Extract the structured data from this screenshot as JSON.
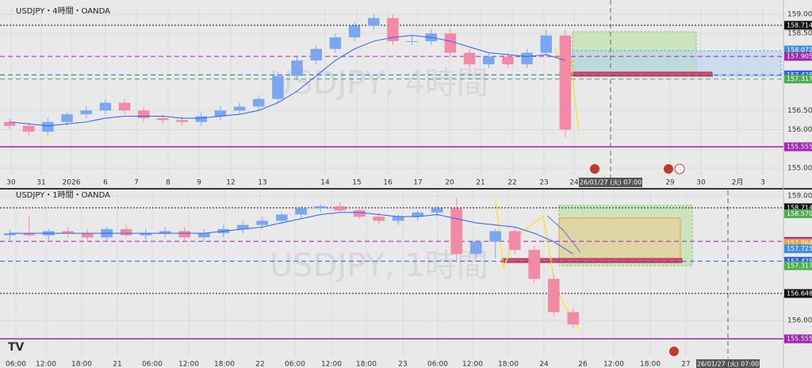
{
  "panels": [
    {
      "type": "candlestick",
      "title": "USDJPY・4時間・OANDA",
      "watermark": "USDJPY, 4時間",
      "ylim": [
        154.794,
        159.206
      ],
      "yticks": [
        {
          "value": 159,
          "label": "159.000"
        },
        {
          "value": 158.5,
          "label": "158.500"
        },
        {
          "value": 156.5,
          "label": "156.500"
        },
        {
          "value": 156,
          "label": "156.000"
        },
        {
          "value": 155.5,
          "label": "155.500"
        },
        {
          "value": 155,
          "label": "155.000"
        }
      ],
      "levels": [
        {
          "value": 158.714,
          "color": "#111111",
          "style": "dotted"
        },
        {
          "value": 158.072,
          "color": "#3d8fe0",
          "style": "none"
        },
        {
          "value": 157.905,
          "color": "#9c27b0",
          "style": "dashed"
        },
        {
          "value": 157.425,
          "color": "#2962ff",
          "style": "dashed"
        },
        {
          "value": 157.317,
          "color": "#4caf50",
          "style": "dashed"
        },
        {
          "value": 155.555,
          "color": "#9c27b0",
          "style": "solid"
        }
      ],
      "x_labels": [
        "30",
        "31",
        "2026",
        "6",
        "7",
        "8",
        "9",
        "12",
        "13",
        "14",
        "15",
        "16",
        "17",
        "20",
        "21",
        "22",
        "23",
        "24",
        "29",
        "30",
        "2月",
        "3"
      ],
      "crosshair_label": "26/01/27 (火)  07:00",
      "open": [
        156.2,
        156.1,
        155.95,
        156.2,
        156.4,
        156.5,
        156.7,
        156.5,
        156.3,
        156.25,
        156.2,
        156.35,
        156.5,
        156.6,
        156.8,
        157.4,
        157.8,
        158.1,
        158.4,
        158.7,
        158.9,
        158.3,
        158.3,
        158.5,
        158.0,
        157.7,
        157.9,
        157.7,
        158.0,
        158.45
      ],
      "high": [
        156.3,
        156.2,
        156.3,
        156.45,
        156.6,
        156.8,
        156.8,
        156.6,
        156.4,
        156.35,
        156.45,
        156.6,
        156.7,
        156.9,
        157.5,
        157.9,
        158.2,
        158.5,
        158.8,
        159.0,
        159.0,
        158.45,
        158.6,
        158.6,
        158.1,
        158.0,
        158.0,
        158.1,
        158.6,
        158.6
      ],
      "low": [
        156.0,
        155.85,
        155.85,
        156.1,
        156.3,
        156.4,
        156.4,
        156.2,
        156.15,
        156.1,
        156.1,
        156.25,
        156.4,
        156.5,
        156.7,
        157.3,
        157.7,
        158.0,
        158.3,
        158.6,
        158.2,
        158.2,
        158.2,
        157.9,
        157.6,
        157.6,
        157.6,
        157.6,
        157.9,
        155.8
      ],
      "close": [
        156.1,
        155.95,
        156.2,
        156.4,
        156.5,
        156.7,
        156.5,
        156.3,
        156.25,
        156.2,
        156.35,
        156.5,
        156.6,
        156.8,
        157.4,
        157.8,
        158.1,
        158.4,
        158.7,
        158.9,
        158.3,
        158.3,
        158.5,
        158.0,
        157.7,
        157.9,
        157.7,
        158.0,
        158.45,
        156.0
      ],
      "ma": [
        156.2,
        156.15,
        156.1,
        156.15,
        156.2,
        156.3,
        156.35,
        156.35,
        156.35,
        156.3,
        156.3,
        156.35,
        156.4,
        156.5,
        156.7,
        157.0,
        157.4,
        157.8,
        158.1,
        158.3,
        158.4,
        158.45,
        158.4,
        158.3,
        158.15,
        158.0,
        157.95,
        157.9,
        157.95,
        157.8
      ]
    },
    {
      "type": "candlestick",
      "title": "USDJPY・1時間・OANDA",
      "watermark": "USDJPY, 1時間",
      "ylim": [
        155.12,
        159.134
      ],
      "yticks": [
        {
          "value": 159,
          "label": "159.000"
        },
        {
          "value": 156,
          "label": "156.000"
        }
      ],
      "levels": [
        {
          "value": 158.714,
          "color": "#111111",
          "style": "dotted"
        },
        {
          "value": 158.57,
          "label": "158.570",
          "color": "#4caf50",
          "style": "none"
        },
        {
          "value": 157.905,
          "color": "#9c27b0",
          "style": "dashed"
        },
        {
          "value": 157.864,
          "color": "#e6a23c",
          "style": "none"
        },
        {
          "value": 157.725,
          "color": "#3d8fe0",
          "style": "none"
        },
        {
          "value": 157.425,
          "color": "#2962ff",
          "style": "dashed"
        },
        {
          "value": 157.317,
          "color": "#4caf50",
          "style": "none"
        },
        {
          "value": 156.648,
          "color": "#111111",
          "style": "dotted"
        },
        {
          "value": 155.555,
          "color": "#9c27b0",
          "style": "solid"
        }
      ],
      "x_labels": [
        "06:00",
        "12:00",
        "18:00",
        "21",
        "06:00",
        "12:00",
        "18:00",
        "22",
        "06:00",
        "12:00",
        "18:00",
        "23",
        "06:00",
        "12:00",
        "18:00",
        "24",
        "26",
        "12:00",
        "18:00",
        "27"
      ],
      "crosshair_label": "26/01/27 (火)  07:00",
      "open": [
        158.05,
        158.1,
        158.05,
        158.15,
        158.1,
        158.0,
        158.2,
        158.05,
        158.1,
        158.15,
        158.0,
        158.1,
        158.2,
        158.3,
        158.4,
        158.55,
        158.7,
        158.75,
        158.65,
        158.5,
        158.4,
        158.5,
        158.6,
        158.7,
        157.6,
        157.9,
        158.15,
        157.7,
        157.0,
        156.2
      ],
      "high": [
        158.2,
        158.5,
        158.2,
        158.25,
        158.2,
        158.25,
        158.3,
        158.2,
        158.25,
        158.25,
        158.2,
        158.3,
        158.4,
        158.5,
        158.6,
        158.75,
        158.8,
        158.85,
        158.75,
        158.6,
        158.55,
        158.65,
        158.75,
        158.95,
        157.95,
        158.2,
        158.25,
        157.8,
        157.1,
        156.3
      ],
      "low": [
        157.9,
        158.0,
        157.9,
        158.0,
        157.9,
        157.9,
        158.0,
        157.95,
        158.0,
        157.9,
        157.9,
        158.0,
        158.1,
        158.2,
        158.3,
        158.45,
        158.6,
        158.6,
        158.45,
        158.3,
        158.3,
        158.4,
        158.5,
        157.4,
        157.5,
        157.5,
        157.6,
        156.9,
        156.1,
        155.8
      ],
      "close": [
        158.1,
        158.05,
        158.15,
        158.1,
        158.0,
        158.2,
        158.05,
        158.1,
        158.15,
        158.0,
        158.1,
        158.2,
        158.3,
        158.4,
        158.55,
        158.7,
        158.75,
        158.65,
        158.5,
        158.4,
        158.5,
        158.6,
        158.7,
        157.6,
        157.9,
        158.15,
        157.7,
        157.0,
        156.2,
        155.9
      ],
      "ma": [
        158.1,
        158.1,
        158.1,
        158.1,
        158.1,
        158.1,
        158.1,
        158.1,
        158.1,
        158.1,
        158.1,
        158.15,
        158.2,
        158.25,
        158.35,
        158.45,
        158.55,
        158.6,
        158.6,
        158.55,
        158.5,
        158.5,
        158.55,
        158.45,
        158.35,
        158.3,
        158.25,
        158.1,
        157.9,
        157.6
      ]
    }
  ]
}
